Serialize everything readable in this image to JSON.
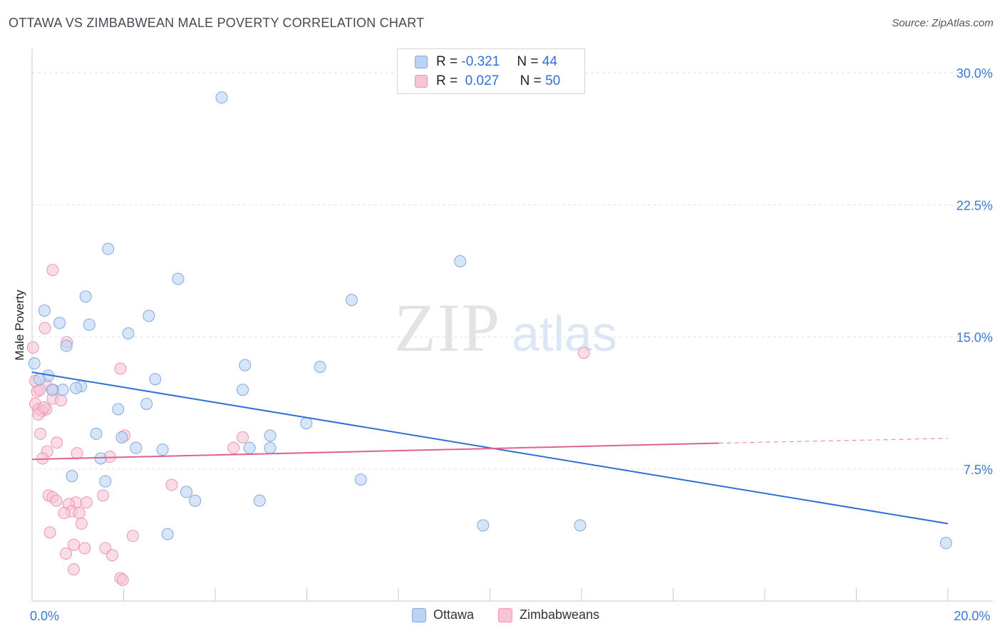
{
  "header": {
    "title": "OTTAWA VS ZIMBABWEAN MALE POVERTY CORRELATION CHART",
    "source": "Source: ZipAtlas.com"
  },
  "watermark": {
    "zip": "ZIP",
    "atlas": "atlas"
  },
  "legend": {
    "rows": [
      {
        "r_label": "R =",
        "r_value": "-0.321",
        "n_label": "N =",
        "n_value": "44"
      },
      {
        "r_label": "R =",
        "r_value": "0.027",
        "n_label": "N =",
        "n_value": "50"
      }
    ]
  },
  "bottom_legend": {
    "ottawa": "Ottawa",
    "zimbabweans": "Zimbabweans"
  },
  "colors": {
    "ottawa_fill": "#bcd4f3",
    "ottawa_stroke": "#7fa9e2",
    "ottawa_line": "#2f6fd6",
    "zim_fill": "#f7c4d6",
    "zim_stroke": "#ee94b4",
    "zim_line": "#e0608f",
    "axis_label": "#3b78d8"
  },
  "chart_data": {
    "type": "scatter",
    "title": "OTTAWA VS ZIMBABWEAN MALE POVERTY CORRELATION CHART",
    "xlabel": "",
    "ylabel": "Male Poverty",
    "xlim": [
      0,
      20
    ],
    "ylim": [
      0,
      30.9
    ],
    "x_ticks": [
      0,
      20
    ],
    "x_tick_labels": [
      "0.0%",
      "20.0%"
    ],
    "y_ticks": [
      7.5,
      15,
      22.5,
      30
    ],
    "y_tick_labels": [
      "7.5%",
      "15.0%",
      "22.5%",
      "30.0%"
    ],
    "series": [
      {
        "name": "Ottawa",
        "r": -0.321,
        "n": 44,
        "trend": {
          "x": [
            0,
            20
          ],
          "y": [
            13.0,
            4.4
          ]
        },
        "points": [
          {
            "x": 4.14,
            "y": 28.6
          },
          {
            "x": 1.66,
            "y": 20.0
          },
          {
            "x": 9.35,
            "y": 19.3
          },
          {
            "x": 3.19,
            "y": 18.3
          },
          {
            "x": 1.17,
            "y": 17.3
          },
          {
            "x": 6.98,
            "y": 17.1
          },
          {
            "x": 0.27,
            "y": 16.5
          },
          {
            "x": 2.55,
            "y": 16.2
          },
          {
            "x": 0.6,
            "y": 15.8
          },
          {
            "x": 1.25,
            "y": 15.7
          },
          {
            "x": 2.1,
            "y": 15.2
          },
          {
            "x": 0.75,
            "y": 14.5
          },
          {
            "x": 0.05,
            "y": 13.5
          },
          {
            "x": 4.65,
            "y": 13.4
          },
          {
            "x": 6.29,
            "y": 13.3
          },
          {
            "x": 0.35,
            "y": 12.8
          },
          {
            "x": 0.16,
            "y": 12.6
          },
          {
            "x": 2.69,
            "y": 12.6
          },
          {
            "x": 1.07,
            "y": 12.2
          },
          {
            "x": 0.96,
            "y": 12.1
          },
          {
            "x": 0.67,
            "y": 12.0
          },
          {
            "x": 0.44,
            "y": 12.0
          },
          {
            "x": 4.6,
            "y": 12.0
          },
          {
            "x": 2.5,
            "y": 11.2
          },
          {
            "x": 1.88,
            "y": 10.9
          },
          {
            "x": 5.99,
            "y": 10.1
          },
          {
            "x": 1.4,
            "y": 9.5
          },
          {
            "x": 5.2,
            "y": 9.4
          },
          {
            "x": 1.96,
            "y": 9.3
          },
          {
            "x": 2.27,
            "y": 8.7
          },
          {
            "x": 2.85,
            "y": 8.6
          },
          {
            "x": 4.75,
            "y": 8.7
          },
          {
            "x": 5.2,
            "y": 8.7
          },
          {
            "x": 1.5,
            "y": 8.1
          },
          {
            "x": 0.87,
            "y": 7.1
          },
          {
            "x": 1.6,
            "y": 6.8
          },
          {
            "x": 7.18,
            "y": 6.9
          },
          {
            "x": 3.37,
            "y": 6.2
          },
          {
            "x": 3.56,
            "y": 5.7
          },
          {
            "x": 4.97,
            "y": 5.7
          },
          {
            "x": 9.85,
            "y": 4.3
          },
          {
            "x": 11.97,
            "y": 4.3
          },
          {
            "x": 2.96,
            "y": 3.8
          },
          {
            "x": 19.96,
            "y": 3.3
          }
        ]
      },
      {
        "name": "Zimbabweans",
        "r": 0.027,
        "n": 50,
        "trend": {
          "x": [
            0,
            15
          ],
          "y": [
            8.05,
            8.97
          ]
        },
        "trend_dashed": {
          "x": [
            15,
            20
          ],
          "y": [
            8.97,
            9.24
          ]
        },
        "points": [
          {
            "x": 0.45,
            "y": 18.8
          },
          {
            "x": 0.28,
            "y": 15.5
          },
          {
            "x": 0.76,
            "y": 14.7
          },
          {
            "x": 0.02,
            "y": 14.4
          },
          {
            "x": 1.93,
            "y": 13.2
          },
          {
            "x": 12.05,
            "y": 14.1
          },
          {
            "x": 0.3,
            "y": 12.3
          },
          {
            "x": 0.11,
            "y": 11.9
          },
          {
            "x": 0.46,
            "y": 12.0
          },
          {
            "x": 0.45,
            "y": 11.5
          },
          {
            "x": 0.63,
            "y": 11.4
          },
          {
            "x": 0.07,
            "y": 11.2
          },
          {
            "x": 0.14,
            "y": 10.9
          },
          {
            "x": 0.22,
            "y": 10.8
          },
          {
            "x": 0.31,
            "y": 10.9
          },
          {
            "x": 0.14,
            "y": 10.6
          },
          {
            "x": 0.18,
            "y": 9.5
          },
          {
            "x": 0.54,
            "y": 9.0
          },
          {
            "x": 2.02,
            "y": 9.4
          },
          {
            "x": 4.6,
            "y": 9.3
          },
          {
            "x": 0.33,
            "y": 8.5
          },
          {
            "x": 0.98,
            "y": 8.4
          },
          {
            "x": 4.4,
            "y": 8.7
          },
          {
            "x": 0.23,
            "y": 8.1
          },
          {
            "x": 1.7,
            "y": 8.2
          },
          {
            "x": 3.05,
            "y": 6.6
          },
          {
            "x": 0.36,
            "y": 6.0
          },
          {
            "x": 0.45,
            "y": 5.9
          },
          {
            "x": 0.53,
            "y": 5.7
          },
          {
            "x": 0.96,
            "y": 5.6
          },
          {
            "x": 1.19,
            "y": 5.6
          },
          {
            "x": 0.8,
            "y": 5.5
          },
          {
            "x": 1.55,
            "y": 6.0
          },
          {
            "x": 0.86,
            "y": 5.1
          },
          {
            "x": 0.7,
            "y": 5.0
          },
          {
            "x": 1.03,
            "y": 5.0
          },
          {
            "x": 1.08,
            "y": 4.4
          },
          {
            "x": 0.39,
            "y": 3.9
          },
          {
            "x": 2.2,
            "y": 3.7
          },
          {
            "x": 0.91,
            "y": 3.2
          },
          {
            "x": 1.15,
            "y": 3.0
          },
          {
            "x": 1.6,
            "y": 3.0
          },
          {
            "x": 0.74,
            "y": 2.7
          },
          {
            "x": 1.75,
            "y": 2.6
          },
          {
            "x": 0.91,
            "y": 1.8
          },
          {
            "x": 1.93,
            "y": 1.3
          },
          {
            "x": 1.98,
            "y": 1.2
          },
          {
            "x": 0.17,
            "y": 12.0
          },
          {
            "x": 0.26,
            "y": 11.0
          },
          {
            "x": 0.07,
            "y": 12.5
          }
        ]
      }
    ],
    "legend_position": "top-center",
    "grid": true
  }
}
